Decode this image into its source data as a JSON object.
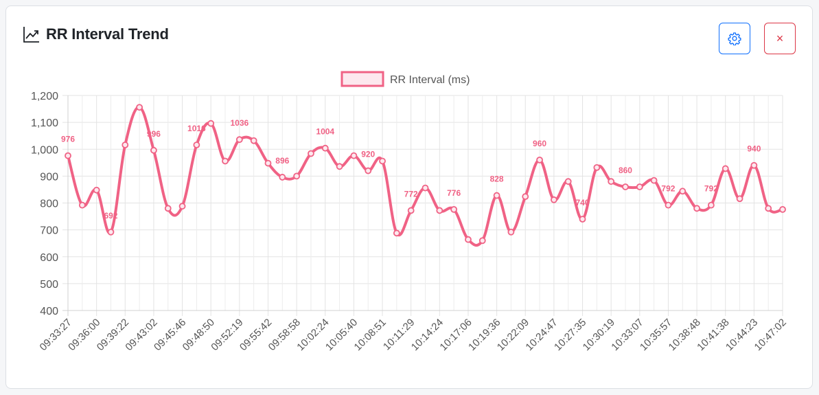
{
  "card": {
    "title": "RR Interval Trend",
    "title_icon": "chart-line-icon",
    "settings_icon": "gear-icon",
    "close_icon": "close-icon",
    "close_glyph": "×"
  },
  "colors": {
    "series": "#f06285",
    "settings_border": "#0d6efd",
    "close_border": "#dc3545"
  },
  "chart_data": {
    "type": "line",
    "legend": {
      "position": "top-center"
    },
    "grid": true,
    "ylim": [
      400,
      1200
    ],
    "yticks": [
      400,
      500,
      600,
      700,
      800,
      900,
      1000,
      1100,
      1200
    ],
    "ytick_labels": [
      "400",
      "500",
      "600",
      "700",
      "800",
      "900",
      "1,000",
      "1,100",
      "1,200"
    ],
    "x_tick_labels": [
      "09:33:27",
      "09:36:00",
      "09:39:22",
      "09:43:02",
      "09:45:46",
      "09:48:50",
      "09:52:19",
      "09:55:42",
      "09:58:58",
      "10:02:24",
      "10:05:40",
      "10:08:51",
      "10:11:29",
      "10:14:24",
      "10:17:06",
      "10:19:36",
      "10:22:09",
      "10:24:47",
      "10:27:35",
      "10:30:19",
      "10:33:07",
      "10:35:57",
      "10:38:48",
      "10:41:38",
      "10:44:23",
      "10:47:02"
    ],
    "series": [
      {
        "name": "RR Interval (ms)",
        "values": [
          976,
          792,
          848,
          692,
          1016,
          1156,
          996,
          780,
          788,
          1016,
          1096,
          956,
          1036,
          1032,
          948,
          896,
          900,
          984,
          1004,
          936,
          976,
          920,
          956,
          688,
          772,
          856,
          772,
          776,
          664,
          660,
          828,
          692,
          824,
          960,
          812,
          880,
          740,
          932,
          880,
          860,
          860,
          884,
          792,
          844,
          780,
          792,
          928,
          816,
          940,
          780,
          776
        ],
        "data_labels": [
          {
            "index": 0,
            "text": "976"
          },
          {
            "index": 3,
            "text": "692"
          },
          {
            "index": 6,
            "text": "996"
          },
          {
            "index": 9,
            "text": "1016"
          },
          {
            "index": 12,
            "text": "1036"
          },
          {
            "index": 15,
            "text": "896"
          },
          {
            "index": 18,
            "text": "1004"
          },
          {
            "index": 21,
            "text": "920"
          },
          {
            "index": 24,
            "text": "772"
          },
          {
            "index": 27,
            "text": "776"
          },
          {
            "index": 30,
            "text": "828"
          },
          {
            "index": 33,
            "text": "960"
          },
          {
            "index": 36,
            "text": "740"
          },
          {
            "index": 39,
            "text": "860"
          },
          {
            "index": 42,
            "text": "792"
          },
          {
            "index": 45,
            "text": "792"
          },
          {
            "index": 48,
            "text": "940"
          }
        ]
      }
    ]
  }
}
